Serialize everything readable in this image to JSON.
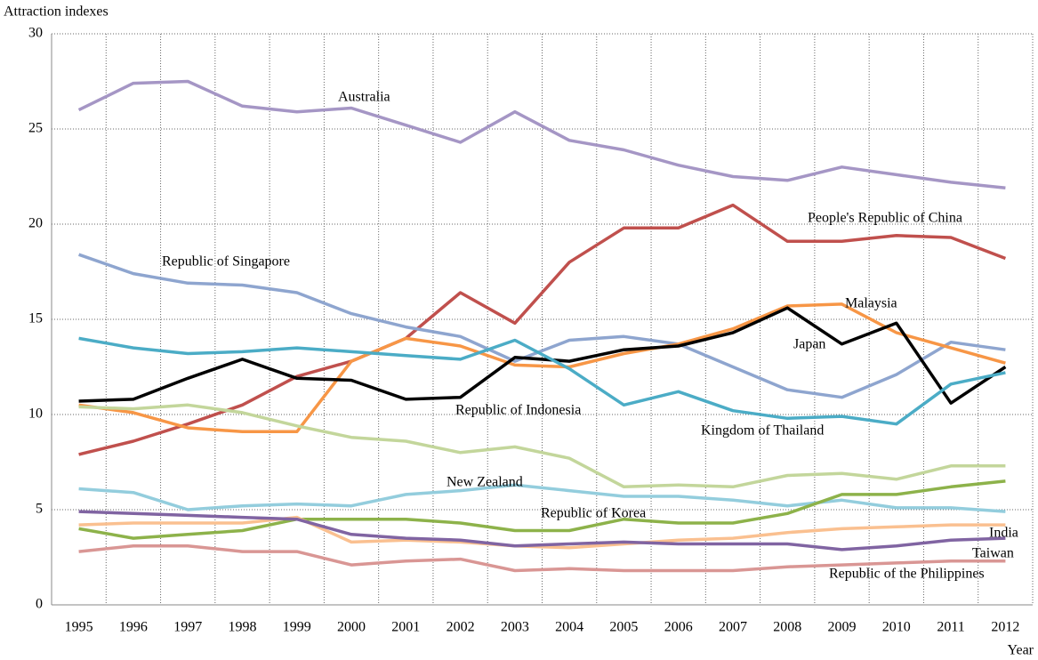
{
  "chart_data": {
    "type": "line",
    "y_axis_label": "Attraction indexes",
    "x_axis_label": "Year",
    "categories": [
      "1995",
      "1996",
      "1997",
      "1998",
      "1999",
      "2000",
      "2001",
      "2002",
      "2003",
      "2004",
      "2005",
      "2006",
      "2007",
      "2008",
      "2009",
      "2010",
      "2011",
      "2012"
    ],
    "ylim": [
      0,
      30
    ],
    "yticks": [
      0,
      5,
      10,
      15,
      20,
      25,
      30
    ],
    "grid": true,
    "series": [
      {
        "name": "Australia",
        "color": "#a596c5",
        "values": [
          26.0,
          27.4,
          27.5,
          26.2,
          25.9,
          26.1,
          25.2,
          24.3,
          25.9,
          24.4,
          23.9,
          23.1,
          22.5,
          22.3,
          23.0,
          22.6,
          22.2,
          21.9
        ]
      },
      {
        "name": "People's Republic of China",
        "color": "#c0504d",
        "values": [
          7.9,
          8.6,
          9.5,
          10.5,
          12.0,
          12.8,
          14.0,
          16.4,
          14.8,
          18.0,
          19.8,
          19.8,
          21.0,
          19.1,
          19.1,
          19.4,
          19.3,
          18.2
        ]
      },
      {
        "name": "Republic of Singapore",
        "color": "#8ea5cf",
        "values": [
          18.4,
          17.4,
          16.9,
          16.8,
          16.4,
          15.3,
          14.6,
          14.1,
          12.8,
          13.9,
          14.1,
          13.7,
          12.5,
          11.3,
          10.9,
          12.1,
          13.8,
          13.4
        ]
      },
      {
        "name": "Malaysia",
        "color": "#f79646",
        "values": [
          10.5,
          10.1,
          9.3,
          9.1,
          9.1,
          12.8,
          14.0,
          13.6,
          12.6,
          12.5,
          13.2,
          13.7,
          14.5,
          15.7,
          15.8,
          14.3,
          13.5,
          12.7
        ]
      },
      {
        "name": "Japan",
        "color": "#000000",
        "values": [
          10.7,
          10.8,
          11.9,
          12.9,
          11.9,
          11.8,
          10.8,
          10.9,
          13.0,
          12.8,
          13.4,
          13.6,
          14.3,
          15.6,
          13.7,
          14.8,
          10.6,
          12.5
        ]
      },
      {
        "name": "Kingdom of Thailand",
        "color": "#4bacc6",
        "values": [
          14.0,
          13.5,
          13.2,
          13.3,
          13.5,
          13.3,
          13.1,
          12.9,
          13.9,
          12.4,
          10.5,
          11.2,
          10.2,
          9.8,
          9.9,
          9.5,
          11.6,
          12.2
        ]
      },
      {
        "name": "Republic of Indonesia",
        "color": "#c3d69b",
        "values": [
          10.4,
          10.3,
          10.5,
          10.1,
          9.4,
          8.8,
          8.6,
          8.0,
          8.3,
          7.7,
          6.2,
          6.3,
          6.2,
          6.8,
          6.9,
          6.6,
          7.3,
          7.3
        ]
      },
      {
        "name": "New Zealand",
        "color": "#93cddd",
        "values": [
          6.1,
          5.9,
          5.0,
          5.2,
          5.3,
          5.2,
          5.8,
          6.0,
          6.3,
          6.0,
          5.7,
          5.7,
          5.5,
          5.2,
          5.5,
          5.1,
          5.1,
          4.9
        ]
      },
      {
        "name": "Republic of Korea",
        "color": "#8db24a",
        "values": [
          4.0,
          3.5,
          3.7,
          3.9,
          4.5,
          4.5,
          4.5,
          4.3,
          3.9,
          3.9,
          4.5,
          4.3,
          4.3,
          4.8,
          5.8,
          5.8,
          6.2,
          6.5
        ]
      },
      {
        "name": "India",
        "color": "#fac090",
        "values": [
          4.2,
          4.3,
          4.3,
          4.3,
          4.6,
          3.3,
          3.4,
          3.3,
          3.1,
          3.0,
          3.2,
          3.4,
          3.5,
          3.8,
          4.0,
          4.1,
          4.2,
          4.2
        ]
      },
      {
        "name": "Taiwan",
        "color": "#8064a2",
        "values": [
          4.9,
          4.8,
          4.7,
          4.6,
          4.5,
          3.7,
          3.5,
          3.4,
          3.1,
          3.2,
          3.3,
          3.2,
          3.2,
          3.2,
          2.9,
          3.1,
          3.4,
          3.5
        ]
      },
      {
        "name": "Republic of the Philippines",
        "color": "#d99694",
        "values": [
          2.8,
          3.1,
          3.1,
          2.8,
          2.8,
          2.1,
          2.3,
          2.4,
          1.8,
          1.9,
          1.8,
          1.8,
          1.8,
          2.0,
          2.1,
          2.2,
          2.3,
          2.3
        ]
      }
    ]
  }
}
